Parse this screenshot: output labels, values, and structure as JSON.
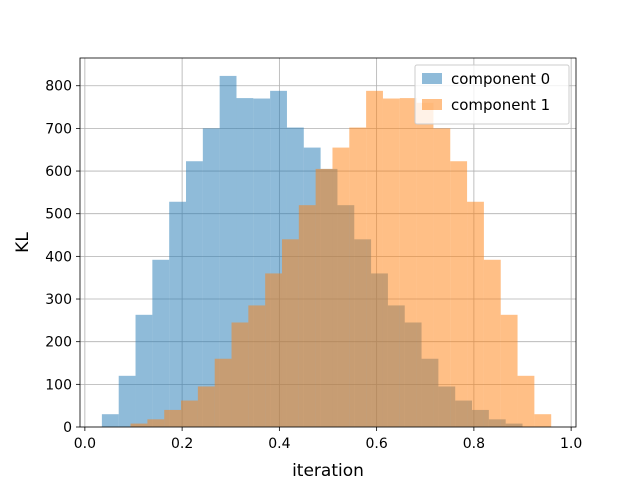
{
  "chart_data": {
    "type": "histogram",
    "xlabel": "iteration",
    "ylabel": "KL",
    "xlim": [
      -0.01,
      1.01
    ],
    "ylim": [
      0,
      865
    ],
    "xticks": [
      0.0,
      0.2,
      0.4,
      0.6,
      0.8,
      1.0
    ],
    "yticks": [
      0,
      100,
      200,
      300,
      400,
      500,
      600,
      700,
      800
    ],
    "xtick_labels": [
      "0.0",
      "0.2",
      "0.4",
      "0.6",
      "0.8",
      "1.0"
    ],
    "ytick_labels": [
      "0",
      "100",
      "200",
      "300",
      "400",
      "500",
      "600",
      "700",
      "800"
    ],
    "grid": true,
    "legend_position": "top-right",
    "series": [
      {
        "name": "component 0",
        "color": "#1f77b4",
        "alpha": 0.5,
        "bin_edges": [
          0.035,
          0.0696,
          0.1042,
          0.1388,
          0.1734,
          0.208,
          0.2426,
          0.2772,
          0.3118,
          0.3464,
          0.381,
          0.4156,
          0.4502,
          0.4848,
          0.5194,
          0.554,
          0.5886,
          0.6232,
          0.6578,
          0.6924,
          0.727,
          0.7616,
          0.7962,
          0.8308,
          0.8654,
          0.9
        ],
        "counts": [
          30,
          120,
          263,
          392,
          528,
          623,
          700,
          823,
          771,
          770,
          788,
          702,
          655,
          605,
          520,
          440,
          360,
          285,
          245,
          160,
          95,
          62,
          40,
          18,
          8
        ]
      },
      {
        "name": "component 1",
        "color": "#ff7f0e",
        "alpha": 0.5,
        "bin_edges": [
          0.094,
          0.1286,
          0.1632,
          0.1978,
          0.2324,
          0.267,
          0.3016,
          0.3362,
          0.3708,
          0.4054,
          0.44,
          0.4746,
          0.5092,
          0.5438,
          0.5784,
          0.613,
          0.6476,
          0.6822,
          0.7168,
          0.7514,
          0.786,
          0.8206,
          0.8552,
          0.8898,
          0.9244,
          0.959
        ],
        "counts": [
          8,
          18,
          40,
          62,
          95,
          160,
          245,
          285,
          360,
          440,
          520,
          605,
          655,
          702,
          788,
          770,
          771,
          760,
          700,
          623,
          528,
          392,
          263,
          120,
          30
        ]
      }
    ]
  }
}
